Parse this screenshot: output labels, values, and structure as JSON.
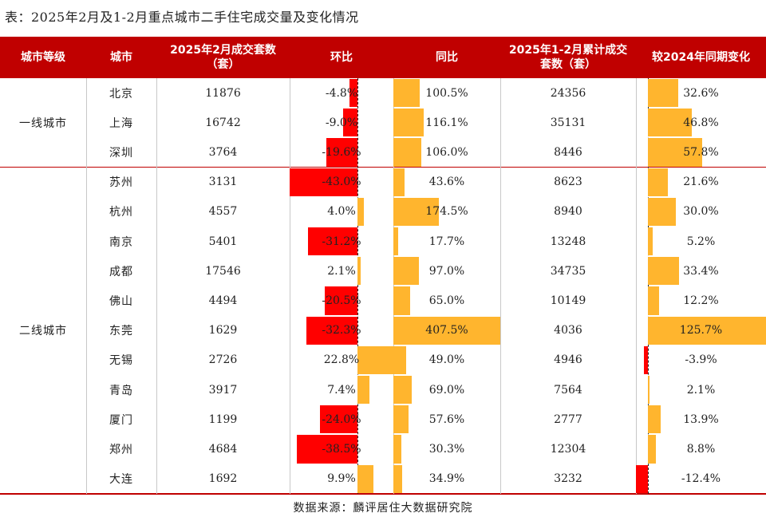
{
  "title": "表：2025年2月及1-2月重点城市二手住宅成交量及变化情况",
  "footer": "数据来源：麟评居住大数据研究院",
  "colors": {
    "header_bg": "#c00000",
    "negative": "#ff0000",
    "positive": "#ffb52e"
  },
  "headers": [
    "城市等级",
    "城市",
    "2025年2月成交套数（套）",
    "环比",
    "同比",
    "2025年1-2月累计成交套数（套）",
    "较2024年同期变化"
  ],
  "tiers": [
    {
      "label": "一线城市",
      "rows": 3
    },
    {
      "label": "二线城市",
      "rows": 11
    }
  ],
  "chart_data": {
    "type": "table",
    "title": "表：2025年2月及1-2月重点城市二手住宅成交量及变化情况",
    "columns": [
      "城市等级",
      "城市",
      "2025年2月成交套数（套）",
      "环比",
      "同比",
      "2025年1-2月累计成交套数（套）",
      "较2024年同期变化"
    ],
    "rows": [
      {
        "tier": "一线城市",
        "city": "北京",
        "feb_units": 11876,
        "mom": -4.8,
        "yoy": 100.5,
        "ytd_units": 24356,
        "ytd_change": 32.6
      },
      {
        "tier": "一线城市",
        "city": "上海",
        "feb_units": 16742,
        "mom": -9.0,
        "yoy": 116.1,
        "ytd_units": 35131,
        "ytd_change": 46.8
      },
      {
        "tier": "一线城市",
        "city": "深圳",
        "feb_units": 3764,
        "mom": -19.6,
        "yoy": 106.0,
        "ytd_units": 8446,
        "ytd_change": 57.8
      },
      {
        "tier": "二线城市",
        "city": "苏州",
        "feb_units": 3131,
        "mom": -43.0,
        "yoy": 43.6,
        "ytd_units": 8623,
        "ytd_change": 21.6
      },
      {
        "tier": "二线城市",
        "city": "杭州",
        "feb_units": 4557,
        "mom": 4.0,
        "yoy": 174.5,
        "ytd_units": 8940,
        "ytd_change": 30.0
      },
      {
        "tier": "二线城市",
        "city": "南京",
        "feb_units": 5401,
        "mom": -31.2,
        "yoy": 17.7,
        "ytd_units": 13248,
        "ytd_change": 5.2
      },
      {
        "tier": "二线城市",
        "city": "成都",
        "feb_units": 17546,
        "mom": 2.1,
        "yoy": 97.0,
        "ytd_units": 34735,
        "ytd_change": 33.4
      },
      {
        "tier": "二线城市",
        "city": "佛山",
        "feb_units": 4494,
        "mom": -20.5,
        "yoy": 65.0,
        "ytd_units": 10149,
        "ytd_change": 12.2
      },
      {
        "tier": "二线城市",
        "city": "东莞",
        "feb_units": 1629,
        "mom": -32.3,
        "yoy": 407.5,
        "ytd_units": 4036,
        "ytd_change": 125.7
      },
      {
        "tier": "二线城市",
        "city": "无锡",
        "feb_units": 2726,
        "mom": 22.8,
        "yoy": 49.0,
        "ytd_units": 4946,
        "ytd_change": -3.9
      },
      {
        "tier": "二线城市",
        "city": "青岛",
        "feb_units": 3917,
        "mom": 7.4,
        "yoy": 69.0,
        "ytd_units": 7564,
        "ytd_change": 2.1
      },
      {
        "tier": "二线城市",
        "city": "厦门",
        "feb_units": 1199,
        "mom": -24.0,
        "yoy": 57.6,
        "ytd_units": 2777,
        "ytd_change": 13.9
      },
      {
        "tier": "二线城市",
        "city": "郑州",
        "feb_units": 4684,
        "mom": -38.5,
        "yoy": 30.3,
        "ytd_units": 12304,
        "ytd_change": 8.8
      },
      {
        "tier": "二线城市",
        "city": "大连",
        "feb_units": 1692,
        "mom": 9.9,
        "yoy": 34.9,
        "ytd_units": 3232,
        "ytd_change": -12.4
      }
    ],
    "display": {
      "mom": [
        "-4.8%",
        "-9.0%",
        "-19.6%",
        "-43.0%",
        "4.0%",
        "-31.2%",
        "2.1%",
        "-20.5%",
        "-32.3%",
        "22.8%",
        "7.4%",
        "-24.0%",
        "-38.5%",
        "9.9%"
      ],
      "yoy": [
        "100.5%",
        "116.1%",
        "106.0%",
        "43.6%",
        "174.5%",
        "17.7%",
        "97.0%",
        "65.0%",
        "407.5%",
        "49.0%",
        "69.0%",
        "57.6%",
        "30.3%",
        "34.9%"
      ],
      "ytd_change": [
        "32.6%",
        "46.8%",
        "57.8%",
        "21.6%",
        "30.0%",
        "5.2%",
        "33.4%",
        "12.2%",
        "125.7%",
        "-3.9%",
        "2.1%",
        "13.9%",
        "8.8%",
        "-12.4%"
      ]
    },
    "bar_ranges": {
      "mom": [
        -43.0,
        22.8
      ],
      "yoy": [
        0,
        407.5
      ],
      "ytd_change": [
        -12.4,
        125.7
      ]
    }
  }
}
